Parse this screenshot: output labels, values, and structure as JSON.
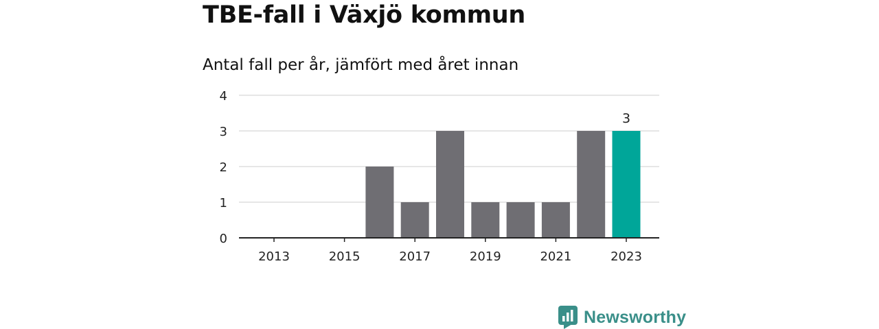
{
  "header": {
    "title": "TBE-fall i Växjö kommun",
    "subtitle": "Antal fall per år, jämfört med året innan"
  },
  "chart_data": {
    "type": "bar",
    "categories": [
      "2013",
      "2014",
      "2015",
      "2016",
      "2017",
      "2018",
      "2019",
      "2020",
      "2021",
      "2022",
      "2023"
    ],
    "values": [
      0,
      0,
      0,
      2,
      1,
      3,
      1,
      1,
      1,
      3,
      3
    ],
    "x_tick_labels": [
      "2013",
      "2015",
      "2017",
      "2019",
      "2021",
      "2023"
    ],
    "y_tick_labels": [
      "0",
      "1",
      "2",
      "3",
      "4"
    ],
    "ylim": [
      0,
      4
    ],
    "grid": true,
    "highlight": {
      "category": "2023",
      "label": "3"
    },
    "colors": {
      "bar": "#6f6e73",
      "highlight": "#00a699",
      "grid": "#dddddd",
      "axis": "#222222"
    }
  },
  "branding": {
    "name": "Newsworthy",
    "icon": "newsworthy-logo-icon",
    "color": "#3a8f89"
  }
}
